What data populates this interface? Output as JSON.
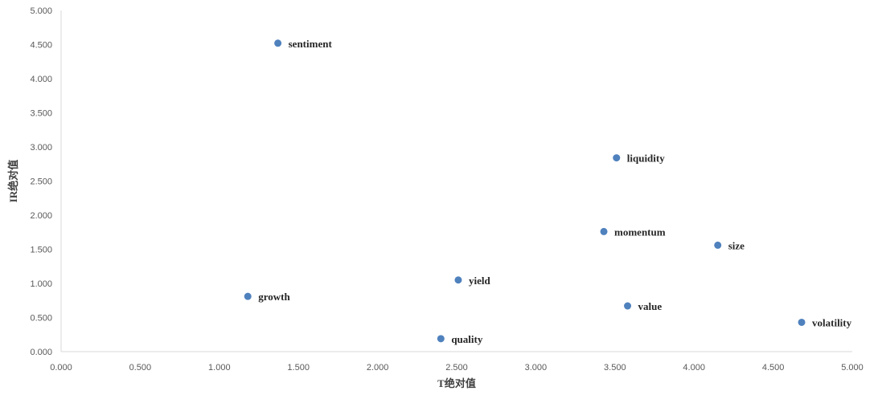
{
  "chart_data": {
    "type": "scatter",
    "title": "",
    "xlabel": "T绝对值",
    "ylabel": "IR绝对值",
    "xlim": [
      0,
      5
    ],
    "ylim": [
      0,
      5
    ],
    "x_ticks": [
      "0.000",
      "0.500",
      "1.000",
      "1.500",
      "2.000",
      "2.500",
      "3.000",
      "3.500",
      "4.000",
      "4.500",
      "5.000"
    ],
    "y_ticks": [
      "0.000",
      "0.500",
      "1.000",
      "1.500",
      "2.000",
      "2.500",
      "3.000",
      "3.500",
      "4.000",
      "4.500",
      "5.000"
    ],
    "grid": false,
    "legend": "none",
    "marker_color": "#4F81BD",
    "points": [
      {
        "label": "sentiment",
        "x": 1.37,
        "y": 4.52
      },
      {
        "label": "liquidity",
        "x": 3.51,
        "y": 2.84
      },
      {
        "label": "momentum",
        "x": 3.43,
        "y": 1.76
      },
      {
        "label": "size",
        "x": 4.15,
        "y": 1.56
      },
      {
        "label": "yield",
        "x": 2.51,
        "y": 1.05
      },
      {
        "label": "growth",
        "x": 1.18,
        "y": 0.81
      },
      {
        "label": "value",
        "x": 3.58,
        "y": 0.67
      },
      {
        "label": "volatility",
        "x": 4.68,
        "y": 0.43
      },
      {
        "label": "quality",
        "x": 2.4,
        "y": 0.19
      }
    ]
  }
}
